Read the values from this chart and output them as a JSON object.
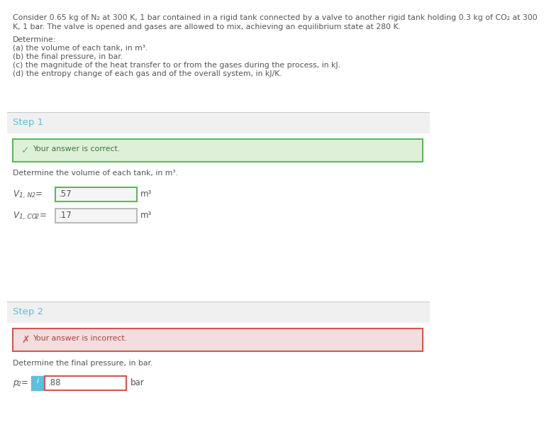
{
  "problem_line1": "Consider 0.65 kg of N₂ at 300 K, 1 bar contained in a rigid tank connected by a valve to another rigid tank holding 0.3 kg of CO₂ at 300",
  "problem_line2": "K, 1 bar. The valve is opened and gases are allowed to mix, achieving an equilibrium state at 280 K.",
  "determine_label": "Determine:",
  "determine_items": [
    "(a) the volume of each tank, in m³.",
    "(b) the final pressure, in bar.",
    "(c) the magnitude of the heat transfer to or from the gases during the process, in kJ.",
    "(d) the entropy change of each gas and of the overall system, in kJ/K."
  ],
  "step1_label": "Step 1",
  "step1_correct_text": "Your answer is correct.",
  "step1_question": "Determine the volume of each tank, in m³.",
  "var1_label_main": "V",
  "var1_label_sub": "1, N",
  "var1_label_subsub": "2",
  "var1_value": ".57",
  "var1_unit": "m³",
  "var2_label_main": "V",
  "var2_label_sub": "1, CO",
  "var2_label_subsub": "2",
  "var2_value": ".17",
  "var2_unit": "m³",
  "step2_label": "Step 2",
  "step2_incorrect_text": "Your answer is incorrect.",
  "step2_question": "Determine the final pressure, in bar.",
  "var3_label_main": "P",
  "var3_label_sub": "2",
  "var3_value": ".88",
  "var3_unit": "bar",
  "bg_color": "#f0f0f0",
  "white": "#ffffff",
  "step_label_color": "#5bc0de",
  "correct_bg": "#dff0d8",
  "correct_border": "#5cb85c",
  "correct_icon_color": "#5cb85c",
  "correct_text_color": "#3c763d",
  "incorrect_bg": "#f2dede",
  "incorrect_border": "#d9534f",
  "incorrect_icon_color": "#d9534f",
  "incorrect_text_color": "#a94442",
  "input_border_correct": "#5cb85c",
  "input_border_incorrect": "#d9534f",
  "input_bg": "#f5f5f5",
  "info_bg": "#5bc0de",
  "info_fg": "#ffffff",
  "text_color": "#555555",
  "separator_color": "#cccccc"
}
